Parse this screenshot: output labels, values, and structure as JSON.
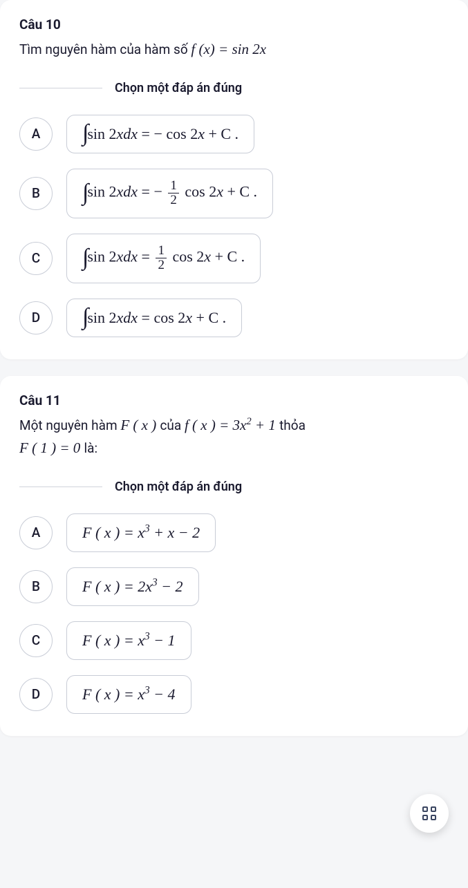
{
  "divider_label": "Chọn một đáp án đúng",
  "q10": {
    "header": "Câu 10",
    "prompt_pre": "Tìm nguyên hàm của hàm số  ",
    "prompt_math": "f (x) = sin 2x",
    "options": {
      "A": {
        "letter": "A",
        "pre": "sin 2",
        "mid": " = − cos 2",
        "post": " + C ."
      },
      "B": {
        "letter": "B",
        "pre": "sin 2",
        "mid": " = − ",
        "frac_num": "1",
        "frac_den": "2",
        "mid2": " cos 2",
        "post": " + C ."
      },
      "C": {
        "letter": "C",
        "pre": "sin 2",
        "mid": " = ",
        "frac_num": "1",
        "frac_den": "2",
        "mid2": " cos 2",
        "post": " + C ."
      },
      "D": {
        "letter": "D",
        "pre": "sin 2",
        "mid": " = cos 2",
        "post": " + C ."
      }
    }
  },
  "q11": {
    "header": "Câu 11",
    "prompt_line1_pre": "Một nguyên hàm ",
    "prompt_line1_F": "F ( x ) ",
    "prompt_line1_mid": "của ",
    "prompt_line1_f": "f ( x ) = 3x",
    "prompt_line1_exp": "2",
    "prompt_line1_post": " + 1 ",
    "prompt_line1_tail": "thỏa",
    "prompt_line2_F": "F ( 1 ) = 0 ",
    "prompt_line2_tail": "là:",
    "options": {
      "A": {
        "letter": "A",
        "lhs": "F ( x ) = x",
        "exp": "3",
        "rhs": " + x − 2"
      },
      "B": {
        "letter": "B",
        "lhs": "F ( x ) = 2x",
        "exp": "3",
        "rhs": " − 2"
      },
      "C": {
        "letter": "C",
        "lhs": "F ( x ) = x",
        "exp": "3",
        "rhs": " − 1"
      },
      "D": {
        "letter": "D",
        "lhs": "F ( x ) = x",
        "exp": "3",
        "rhs": " − 4"
      }
    }
  },
  "colors": {
    "background": "#f5f6f8",
    "card": "#ffffff",
    "text": "#1a1a2e",
    "border": "#c8ccd6",
    "divider": "#d0d3db",
    "fab_icon": "#3a4560"
  }
}
